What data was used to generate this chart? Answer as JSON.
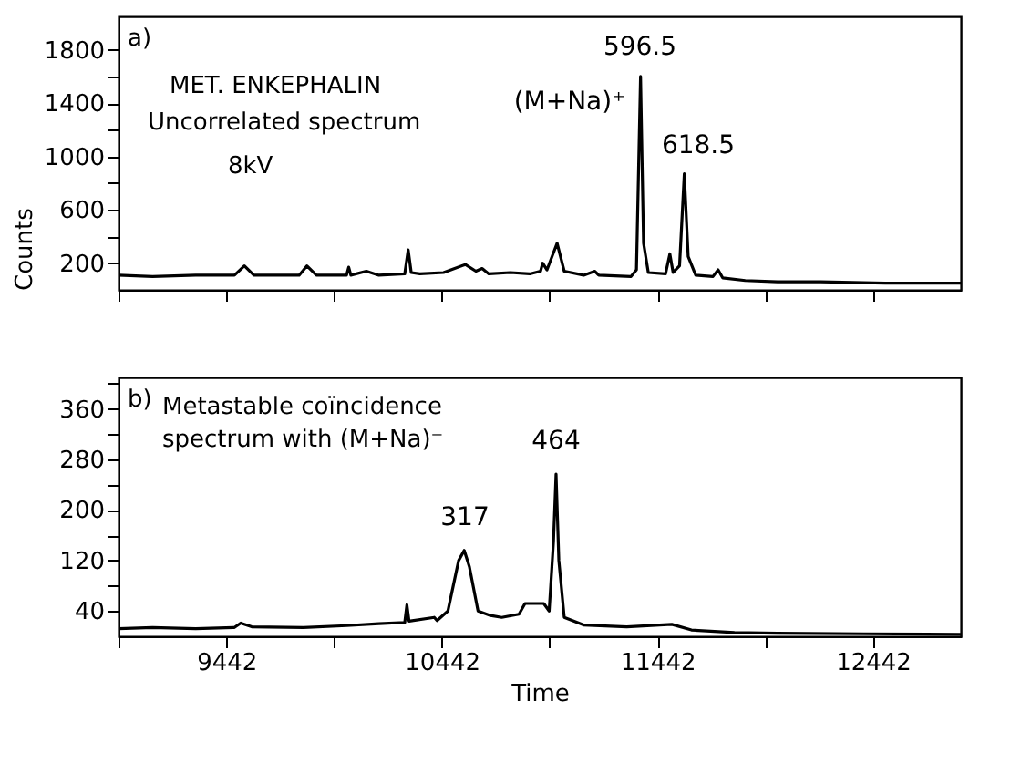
{
  "chart_data": [
    {
      "type": "line",
      "ylabel": "Counts",
      "tick_labels": "y",
      "grid": false,
      "marker": "none",
      "line_style": "solid",
      "xlim": [
        8942,
        12850
      ],
      "xticks": [
        {
          "value": 8942,
          "label": null
        },
        {
          "value": 9442,
          "label": null
        },
        {
          "value": 9942,
          "label": null
        },
        {
          "value": 10442,
          "label": null
        },
        {
          "value": 10942,
          "label": null
        },
        {
          "value": 11442,
          "label": null
        },
        {
          "value": 11942,
          "label": null
        },
        {
          "value": 12442,
          "label": null
        }
      ],
      "ylim": [
        0,
        2050
      ],
      "yticks": [
        200,
        {
          "value": 400,
          "label": null
        },
        600,
        {
          "value": 800,
          "label": null
        },
        1000,
        {
          "value": 1200,
          "label": null
        },
        1400,
        {
          "value": 1600,
          "label": null
        },
        1800
      ],
      "annotations": [
        "a)",
        "MET. ENKEPHALIN",
        "Uncorrelated spectrum",
        "8kV",
        "596.5",
        "(M+Na)⁺",
        "618.5"
      ],
      "series": [
        {
          "color": "#000000",
          "x": [
            8942,
            9100,
            9300,
            9480,
            9526,
            9570,
            9780,
            9816,
            9860,
            10000,
            10010,
            10020,
            10092,
            10150,
            10270,
            10286,
            10300,
            10340,
            10450,
            10551,
            10600,
            10629,
            10660,
            10760,
            10850,
            10900,
            10910,
            10930,
            10977,
            11010,
            11100,
            11152,
            11170,
            11320,
            11345,
            11364,
            11378,
            11400,
            11480,
            11500,
            11515,
            11545,
            11567,
            11585,
            11620,
            11700,
            11724,
            11745,
            11850,
            12000,
            12200,
            12500,
            12850
          ],
          "values": [
            110,
            100,
            110,
            110,
            180,
            110,
            110,
            180,
            110,
            110,
            170,
            110,
            140,
            110,
            120,
            300,
            130,
            120,
            130,
            190,
            140,
            160,
            120,
            130,
            120,
            140,
            200,
            150,
            350,
            140,
            110,
            140,
            110,
            100,
            150,
            1600,
            350,
            130,
            120,
            270,
            130,
            180,
            870,
            250,
            110,
            100,
            150,
            90,
            70,
            60,
            60,
            50,
            50
          ]
        }
      ]
    },
    {
      "type": "line",
      "xlabel": "Time",
      "grid": false,
      "marker": "none",
      "line_style": "solid",
      "xlim": [
        8942,
        12850
      ],
      "xticks": [
        {
          "value": 8942,
          "label": null
        },
        9442,
        {
          "value": 9942,
          "label": null
        },
        10442,
        {
          "value": 10942,
          "label": null
        },
        11442,
        {
          "value": 11942,
          "label": null
        },
        12442
      ],
      "ylim": [
        0,
        410
      ],
      "yticks": [
        40,
        {
          "value": 80,
          "label": null
        },
        120,
        {
          "value": 160,
          "label": null
        },
        200,
        {
          "value": 240,
          "label": null
        },
        280,
        {
          "value": 320,
          "label": null
        },
        360,
        {
          "value": 400,
          "label": null
        }
      ],
      "annotations": [
        "b)",
        "Metastable coïncidence",
        "spectrum with (M+Na)⁻",
        "317",
        "464"
      ],
      "series": [
        {
          "color": "#000000",
          "x": [
            8942,
            9100,
            9300,
            9480,
            9509,
            9560,
            9800,
            10000,
            10150,
            10270,
            10280,
            10290,
            10407,
            10420,
            10470,
            10520,
            10546,
            10570,
            10610,
            10668,
            10720,
            10800,
            10828,
            10915,
            10940,
            10960,
            10972,
            10985,
            11010,
            11100,
            11300,
            11509,
            11600,
            11800,
            12000,
            12400,
            12850
          ],
          "values": [
            12,
            14,
            12,
            14,
            21,
            15,
            14,
            17,
            20,
            22,
            50,
            24,
            30,
            25,
            40,
            120,
            136,
            110,
            40,
            33,
            30,
            35,
            52,
            52,
            40,
            150,
            257,
            120,
            30,
            18,
            15,
            19,
            10,
            6,
            5,
            4,
            3
          ]
        }
      ]
    }
  ]
}
